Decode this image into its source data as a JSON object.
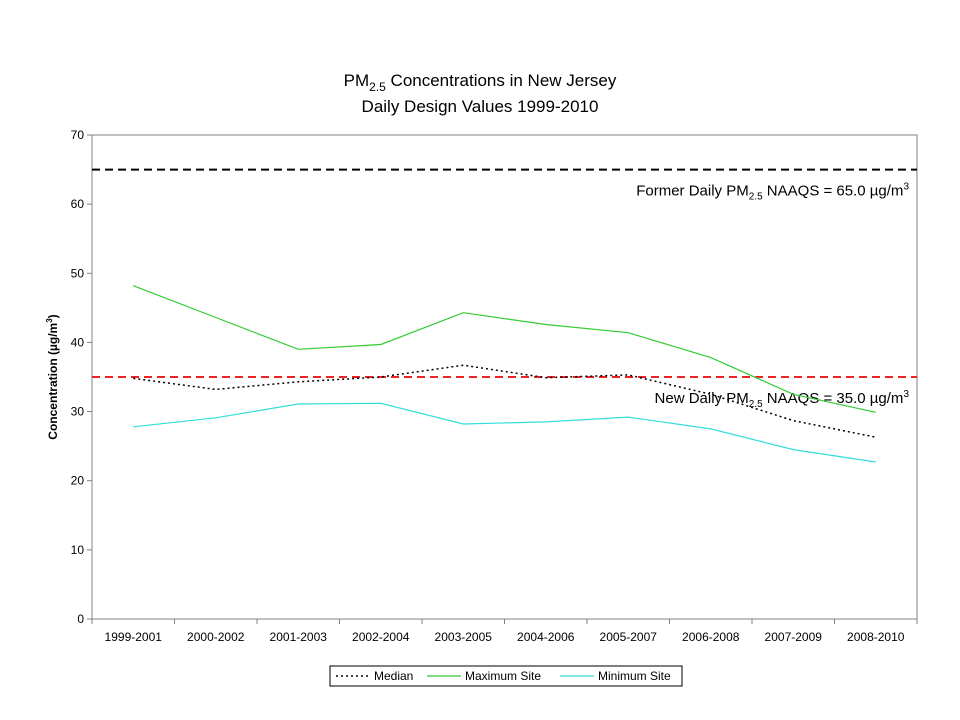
{
  "chart_data": {
    "type": "line",
    "title": {
      "line1_prefix": "PM",
      "line1_subscript": "2.5",
      "line1_suffix": " Concentrations in New Jersey",
      "line2": "Daily Design Values 1999-2010"
    },
    "ylabel": {
      "prefix": "Concentration  (µg/m",
      "superscript": "3",
      "suffix": ")"
    },
    "xlabel": "",
    "ylim": [
      0,
      70
    ],
    "yticks": [
      0,
      10,
      20,
      30,
      40,
      50,
      60,
      70
    ],
    "categories": [
      "1999-2001",
      "2000-2002",
      "2001-2003",
      "2002-2004",
      "2003-2005",
      "2004-2006",
      "2005-2007",
      "2006-2008",
      "2007-2009",
      "2008-2010"
    ],
    "series": [
      {
        "name": "Median",
        "color": "#000000",
        "style": "dotted",
        "values": [
          34.8,
          33.2,
          34.3,
          35.0,
          36.7,
          34.9,
          35.3,
          32.5,
          28.7,
          26.3
        ]
      },
      {
        "name": "Maximum Site",
        "color": "#33cc33",
        "style": "solid",
        "values": [
          48.2,
          43.6,
          39.0,
          39.7,
          44.3,
          42.6,
          41.4,
          37.8,
          32.5,
          29.9
        ]
      },
      {
        "name": "Minimum Site",
        "color": "#33dddd",
        "style": "solid",
        "values": [
          27.8,
          29.1,
          31.1,
          31.2,
          28.2,
          28.5,
          29.2,
          27.5,
          24.5,
          22.7
        ]
      }
    ],
    "reference_lines": [
      {
        "value": 65.0,
        "color": "#000000",
        "label_prefix": "Former Daily PM",
        "label_subscript": "2.5",
        "label_mid": " NAAQS = 65.0 µg/m",
        "label_superscript": "3"
      },
      {
        "value": 35.0,
        "color": "#ee2222",
        "label_prefix": "New Daily PM",
        "label_subscript": "2.5",
        "label_mid": " NAAQS = 35.0 µg/m",
        "label_superscript": "3"
      }
    ],
    "legend_position": "bottom",
    "grid": false
  }
}
